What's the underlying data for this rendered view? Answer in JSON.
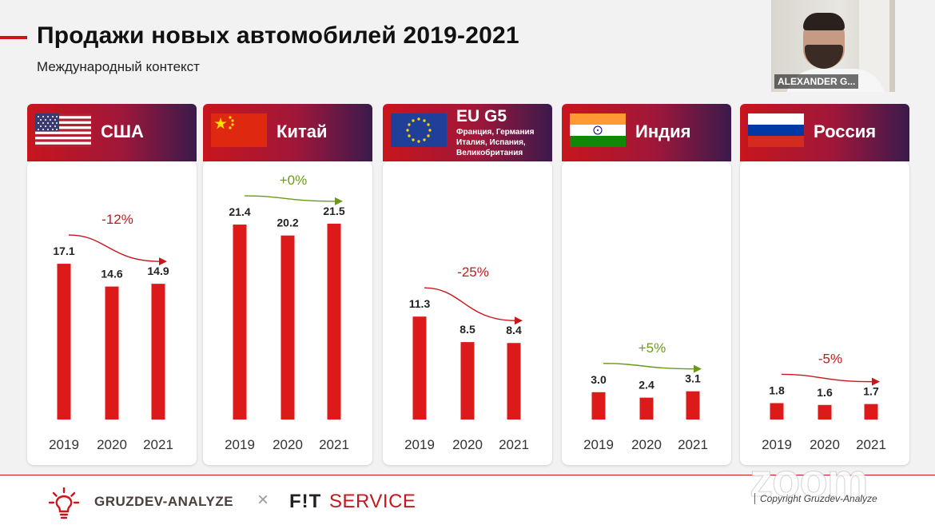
{
  "header": {
    "title": "Продажи новых автомобилей 2019-2021",
    "subtitle": "Международный контекст"
  },
  "webcam": {
    "name": "ALEXANDER G..."
  },
  "colors": {
    "bar": "#dd1a1a",
    "negative": "#c8161d",
    "positive": "#6b9a17"
  },
  "chart_data": [
    {
      "type": "bar",
      "title": "США",
      "categories": [
        "2019",
        "2020",
        "2021"
      ],
      "values": [
        17.1,
        14.6,
        14.9
      ],
      "change": "-12%"
    },
    {
      "type": "bar",
      "title": "Китай",
      "categories": [
        "2019",
        "2020",
        "2021"
      ],
      "values": [
        21.4,
        20.2,
        21.5
      ],
      "change": "+0%"
    },
    {
      "type": "bar",
      "title": "EU G5",
      "subtitle": "Франция, Германия Италия, Испания, Великобритания",
      "categories": [
        "2019",
        "2020",
        "2021"
      ],
      "values": [
        11.3,
        8.5,
        8.4
      ],
      "change": "-25%"
    },
    {
      "type": "bar",
      "title": "Индия",
      "categories": [
        "2019",
        "2020",
        "2021"
      ],
      "values": [
        3.0,
        2.4,
        3.1
      ],
      "change": "+5%"
    },
    {
      "type": "bar",
      "title": "Россия",
      "categories": [
        "2019",
        "2020",
        "2021"
      ],
      "values": [
        1.8,
        1.6,
        1.7
      ],
      "change": "-5%"
    }
  ],
  "footer": {
    "brand1": "GRUZDEV-ANALYZE",
    "separator": "×",
    "brand2_fit": "F!T",
    "brand2_service": "SERVICE",
    "watermark": "zoom",
    "copyright": "Copyright Gruzdev-Analyze"
  }
}
